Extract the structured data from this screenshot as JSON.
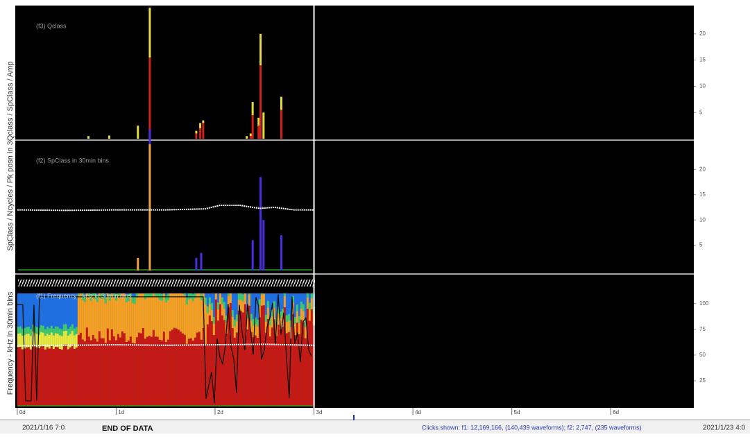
{
  "panels": [
    {
      "label": "(f3) Qclass",
      "ylim": [
        0,
        25.4
      ],
      "yticks": [
        5,
        10,
        15,
        20
      ],
      "x": [
        0.72,
        0.93,
        1.22,
        1.34,
        1.81,
        1.85,
        1.88,
        2.32,
        2.36,
        2.38,
        2.44,
        2.46,
        2.49,
        2.67
      ],
      "series": [
        {
          "color": "#d0201a",
          "values": [
            0,
            0,
            0,
            15.5,
            1,
            2,
            3,
            0,
            0.5,
            4.5,
            2.5,
            14,
            0,
            5.5
          ]
        },
        {
          "color": "#e4dc3c",
          "values": [
            0.5,
            0.6,
            2.5,
            9.5,
            0.5,
            1,
            0.5,
            0.5,
            0.5,
            2.5,
            1.5,
            6,
            5,
            2.5
          ]
        }
      ]
    },
    {
      "label": "(f2) SpClass  in 30min bins",
      "ylim": [
        0,
        25.4
      ],
      "yticks": [
        5,
        10,
        15,
        20
      ],
      "x": [
        1.22,
        1.34,
        1.81,
        1.86,
        2.38,
        2.46,
        2.49,
        2.67
      ],
      "series": [
        {
          "color": "#f0a040",
          "values": [
            2.5,
            25,
            0,
            0,
            0,
            0,
            0,
            0
          ]
        },
        {
          "color": "#4a2ee0",
          "values": [
            0,
            3,
            2.5,
            3.5,
            6,
            18.5,
            10,
            7
          ]
        }
      ],
      "line": {
        "color": "#ffffff",
        "x": [
          0,
          0.5,
          1,
          1.5,
          1.9,
          2.05,
          2.25,
          2.45,
          2.6,
          2.8,
          3
        ],
        "values": [
          12,
          11.9,
          12,
          12,
          12.2,
          12.9,
          12.9,
          12.3,
          12.5,
          12,
          12
        ]
      }
    },
    {
      "label": "(f1) Frequency - kHz  in 30min bins",
      "ylim": [
        0,
        110
      ],
      "yticks": [
        25,
        50,
        75,
        100
      ],
      "line": {
        "color": "#ffffff",
        "x": [
          0,
          0.5,
          1,
          1.5,
          2,
          2.5,
          3
        ],
        "values": [
          59,
          59.5,
          60,
          59.5,
          60,
          60.5,
          59.5
        ]
      }
    }
  ],
  "side_labels": [
    "Frequency - kHz  in 30min bins",
    "SpClass / Ncycles / Pk posn  in 3Qclass / SpClass / Amp"
  ],
  "x_axis": {
    "xlim": [
      -0.02,
      6.84
    ],
    "data_end": 3,
    "xticks": [
      {
        "value": 0,
        "label": "0d"
      },
      {
        "value": 1,
        "label": "1d"
      },
      {
        "value": 2,
        "label": "2d"
      },
      {
        "value": 3,
        "label": "3d"
      },
      {
        "value": 4,
        "label": "4d"
      },
      {
        "value": 5,
        "label": "5d"
      },
      {
        "value": 6,
        "label": "6d"
      }
    ]
  },
  "status": {
    "start": "2021/1/16 7:0",
    "message": "END OF DATA",
    "clicks": "Clicks shown:   f1: 12,169,166, (140,439 waveforms);  f2: 2,747, (235 waveforms)",
    "end": "2021/1/23 4:0"
  }
}
